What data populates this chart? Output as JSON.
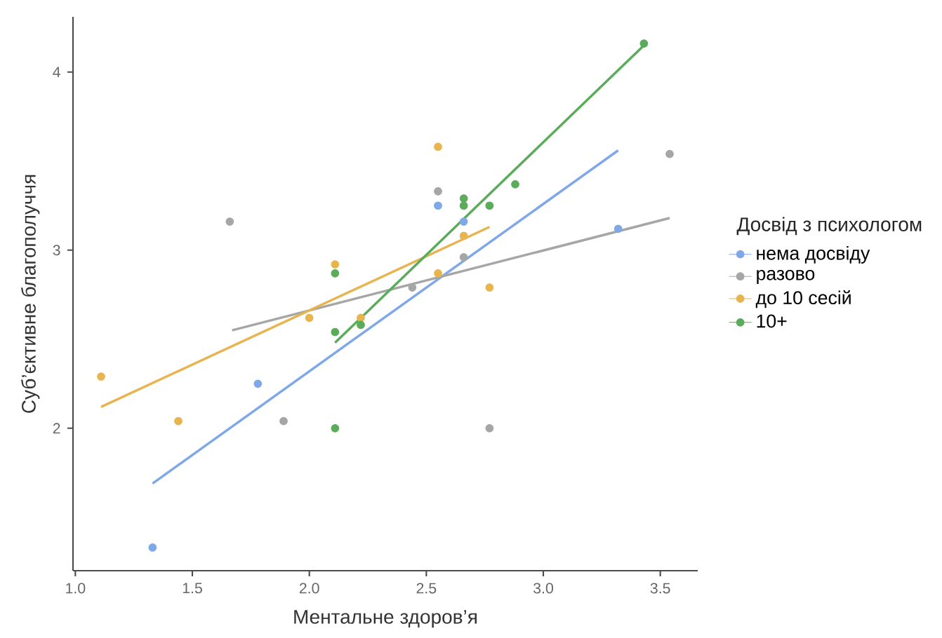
{
  "chart_data": {
    "type": "scatter",
    "xlabel": "Ментальне здоров’я",
    "ylabel": "Суб’єктивне благополуччя",
    "legend_title": "Досвід з психологом",
    "legend": "right",
    "grid": false,
    "line_style": "solid",
    "xlim": [
      0.99,
      3.66
    ],
    "ylim": [
      1.2,
      4.31
    ],
    "xticks": [
      {
        "value": 1.0,
        "label": "1.0"
      },
      {
        "value": 1.5,
        "label": "1.5"
      },
      {
        "value": 2.0,
        "label": "2.0"
      },
      {
        "value": 2.5,
        "label": "2.5"
      },
      {
        "value": 3.0,
        "label": "3.0"
      },
      {
        "value": 3.5,
        "label": "3.5"
      }
    ],
    "yticks": [
      2,
      3,
      4
    ],
    "series": [
      {
        "name": "нема досвіду",
        "type": "scatter",
        "marker": "circle",
        "color": "#7fa8e8",
        "x": [
          1.33,
          1.78,
          2.55,
          2.66,
          3.32
        ],
        "values": [
          1.33,
          2.25,
          3.25,
          3.16,
          3.12
        ]
      },
      {
        "name": "разово",
        "type": "scatter",
        "marker": "circle",
        "color": "#a6a6a6",
        "x": [
          1.66,
          1.89,
          2.44,
          2.55,
          2.66,
          2.77,
          3.54
        ],
        "values": [
          3.16,
          2.04,
          2.79,
          3.33,
          2.96,
          2.0,
          3.54
        ]
      },
      {
        "name": "до 10 сесій",
        "type": "scatter",
        "marker": "circle",
        "color": "#e8b44f",
        "x": [
          1.11,
          1.44,
          2.0,
          2.11,
          2.22,
          2.55,
          2.66,
          2.55,
          2.77
        ],
        "values": [
          2.29,
          2.04,
          2.62,
          2.92,
          2.62,
          3.58,
          3.08,
          2.87,
          2.79
        ]
      },
      {
        "name": "10+",
        "type": "scatter",
        "marker": "circle",
        "color": "#5aab5a",
        "x": [
          2.11,
          2.11,
          2.11,
          2.22,
          2.66,
          2.66,
          2.77,
          2.88,
          3.43
        ],
        "values": [
          2.87,
          2.54,
          2.0,
          2.58,
          3.29,
          3.25,
          3.25,
          3.37,
          4.16
        ]
      },
      {
        "type": "line",
        "marker": "none",
        "color": "#7fa8e8",
        "x": [
          1.33,
          3.32
        ],
        "values": [
          1.69,
          3.56
        ]
      },
      {
        "type": "line",
        "marker": "none",
        "color": "#a6a6a6",
        "x": [
          1.67,
          3.54
        ],
        "values": [
          2.55,
          3.18
        ]
      },
      {
        "type": "line",
        "marker": "none",
        "color": "#e8b44f",
        "x": [
          1.11,
          2.77
        ],
        "values": [
          2.12,
          3.13
        ]
      },
      {
        "type": "line",
        "marker": "none",
        "color": "#5aab5a",
        "x": [
          2.11,
          3.43
        ],
        "values": [
          2.48,
          4.15
        ]
      }
    ]
  }
}
